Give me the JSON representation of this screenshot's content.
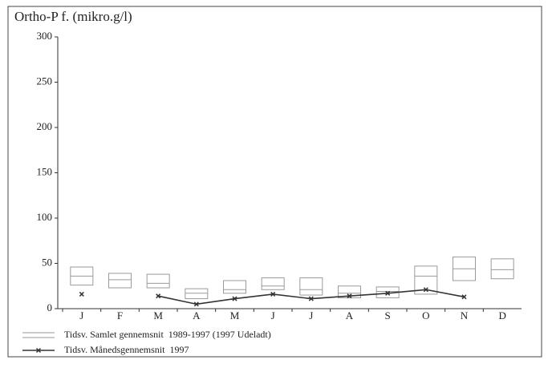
{
  "chart_data": {
    "type": "box-line",
    "title": "Ortho-P f. (mikro.g/l)",
    "categories": [
      "J",
      "F",
      "M",
      "A",
      "M",
      "J",
      "J",
      "A",
      "S",
      "O",
      "N",
      "D"
    ],
    "ylim": [
      0,
      300
    ],
    "yticks": [
      0,
      50,
      100,
      150,
      200,
      250,
      300
    ],
    "series": [
      {
        "name": "Tidsv. Samlet gennemsnit  1989-1997 (1997 Udeladt)",
        "color": "#9a9a9a",
        "high": [
          46,
          39,
          38,
          22,
          31,
          34,
          34,
          25,
          24,
          47,
          57,
          55
        ],
        "values": [
          36,
          32,
          28,
          17,
          21,
          25,
          21,
          17,
          19,
          36,
          44,
          43
        ],
        "low": [
          26,
          23,
          23,
          11,
          17,
          21,
          15,
          12,
          12,
          16,
          31,
          33
        ]
      },
      {
        "name": "Tidsv. Månedsgennemsnit  1997",
        "color": "#333333",
        "values": [
          16,
          null,
          14,
          5,
          11,
          16,
          11,
          14,
          17,
          21,
          13,
          null
        ]
      }
    ]
  }
}
